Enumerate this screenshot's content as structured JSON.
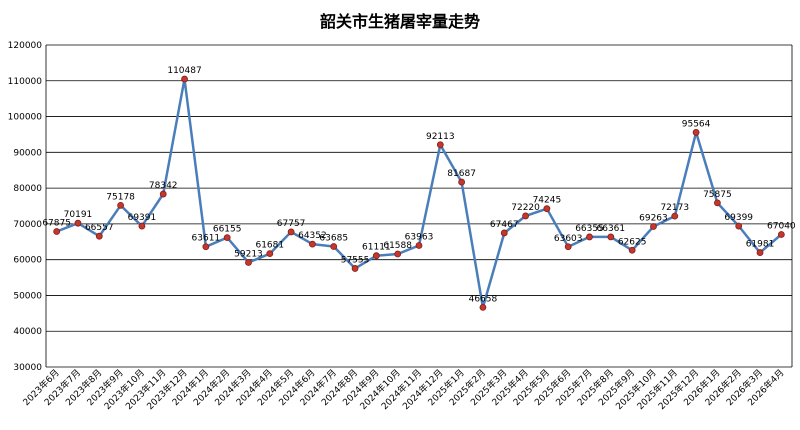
{
  "chart_data": {
    "type": "line",
    "title": "韶关市生猪屠宰量走势",
    "xlabel": "",
    "ylabel": "",
    "ylim": [
      30000,
      120000
    ],
    "yticks": [
      "120000",
      "110000",
      "100000",
      "90000",
      "80000",
      "70000",
      "60000",
      "50000",
      "40000",
      "30000"
    ],
    "grid": true,
    "legend": "none",
    "colors": {
      "line": "#4a7ebb",
      "marker": "#c0392b"
    },
    "categories": [
      "2023年6月",
      "2023年7月",
      "2023年8月",
      "2023年9月",
      "2023年10月",
      "2023年11月",
      "2023年12月",
      "2024年1月",
      "2024年2月",
      "2024年3月",
      "2024年4月",
      "2024年5月",
      "2024年6月",
      "2024年7月",
      "2024年8月",
      "2024年9月",
      "2024年10月",
      "2024年11月",
      "2024年12月",
      "2025年1月",
      "2025年2月",
      "2025年3月",
      "2025年4月",
      "2025年5月",
      "2025年6月",
      "2025年7月",
      "2025年8月",
      "2025年9月",
      "2025年10月",
      "2025年11月",
      "2025年12月",
      "2026年1月",
      "2026年2月",
      "2026年3月",
      "2026年4月"
    ],
    "series": [
      {
        "values": [
          67875,
          70191,
          66557,
          75178,
          69391,
          78342,
          110487,
          63611,
          66155,
          59213,
          61681,
          67757,
          64352,
          63685,
          57555,
          61111,
          61588,
          63963,
          92113,
          81687,
          46658,
          67467,
          72220,
          74245,
          63603,
          66355,
          66361,
          62625,
          69263,
          72173,
          95564,
          75875,
          69399,
          61981,
          67040
        ],
        "labels": [
          "67875",
          "70191",
          "66557",
          "75178",
          "69391",
          "78342",
          "110487",
          "63611",
          "66155",
          "59213",
          "61681",
          "67757",
          "64352",
          "63685",
          "57555",
          "61111",
          "61588",
          "63963",
          "92113",
          "81687",
          "46658",
          "67467",
          "72220",
          "74245",
          "63603",
          "66355",
          "66361",
          "62625",
          "69263",
          "72173",
          "95564",
          "75875",
          "69399",
          "61981",
          "67040"
        ]
      }
    ]
  }
}
